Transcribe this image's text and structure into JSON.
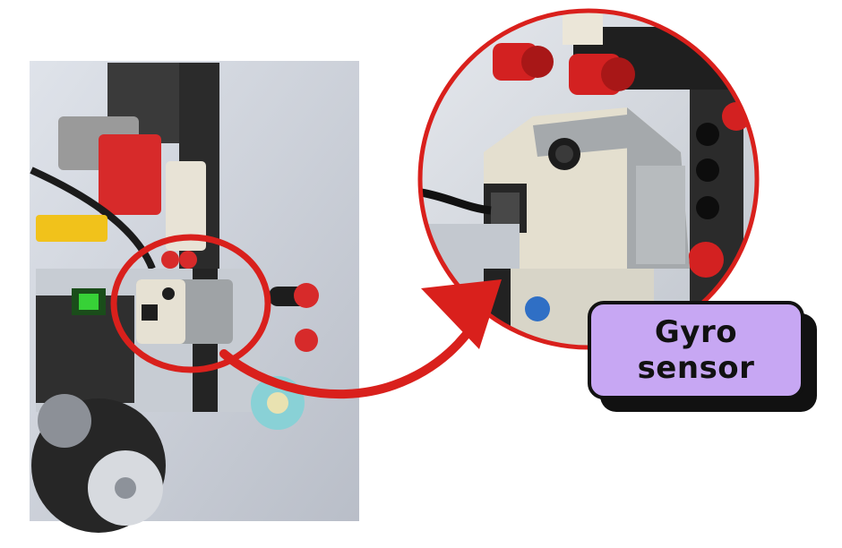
{
  "callout": {
    "line1": "Gyro",
    "line2": "sensor"
  },
  "colors": {
    "highlight": "#d9201c",
    "label_bg": "#c7a7f3",
    "label_border": "#111111"
  },
  "icons": {
    "arrow": "curved-arrow-icon"
  }
}
